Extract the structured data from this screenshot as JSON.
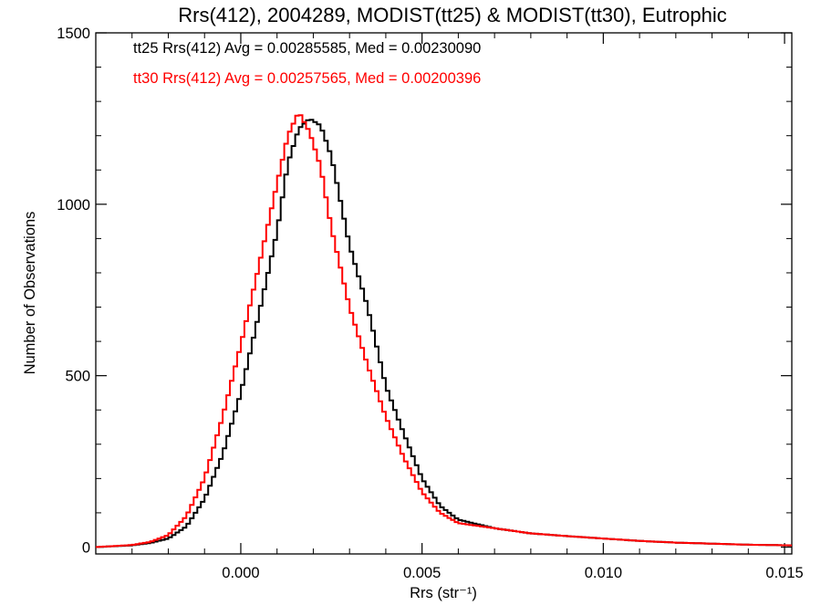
{
  "chart_data": {
    "type": "line",
    "title": "Rrs(412), 2004289, MODIST(tt25) & MODIST(tt30), Eutrophic",
    "xlabel": "Rrs (str⁻¹)",
    "ylabel": "Number of Observations",
    "xlim": [
      -0.004,
      0.0152
    ],
    "ylim": [
      -20,
      1500
    ],
    "xticks": [
      0.0,
      0.005,
      0.01,
      0.015
    ],
    "xtick_labels": [
      "0.000",
      "0.005",
      "0.010",
      "0.015"
    ],
    "yticks": [
      0,
      500,
      1000,
      1500
    ],
    "ytick_labels": [
      "0",
      "500",
      "1000",
      "1500"
    ],
    "grid": false,
    "legend_position": "top-left",
    "annotations": [
      {
        "text": "tt25 Rrs(412) Avg = 0.00285585, Med = 0.00230090",
        "color": "#000000"
      },
      {
        "text": "tt30 Rrs(412) Avg = 0.00257565, Med = 0.00200396",
        "color": "#ff0000"
      }
    ],
    "series": [
      {
        "color": "#000000",
        "x": [
          -0.004,
          -0.003,
          -0.0025,
          -0.002,
          -0.0015,
          -0.001,
          -0.0005,
          0.0,
          0.0005,
          0.001,
          0.0013,
          0.0016,
          0.0019,
          0.0022,
          0.0025,
          0.003,
          0.0035,
          0.004,
          0.0045,
          0.005,
          0.0055,
          0.006,
          0.007,
          0.008,
          0.009,
          0.01,
          0.011,
          0.012,
          0.013,
          0.014,
          0.0152
        ],
        "values": [
          0,
          5,
          12,
          25,
          60,
          140,
          270,
          450,
          680,
          920,
          1120,
          1220,
          1250,
          1230,
          1140,
          880,
          700,
          470,
          330,
          200,
          120,
          80,
          55,
          40,
          32,
          25,
          18,
          13,
          10,
          7,
          5
        ]
      },
      {
        "color": "#ff0000",
        "x": [
          -0.004,
          -0.003,
          -0.0025,
          -0.002,
          -0.0015,
          -0.001,
          -0.0005,
          0.0,
          0.0005,
          0.001,
          0.0013,
          0.0016,
          0.0019,
          0.0022,
          0.0025,
          0.003,
          0.0035,
          0.004,
          0.0045,
          0.005,
          0.0055,
          0.006,
          0.007,
          0.008,
          0.009,
          0.01,
          0.011,
          0.012,
          0.013,
          0.014,
          0.0152
        ],
        "values": [
          0,
          6,
          15,
          35,
          90,
          200,
          380,
          590,
          820,
          1060,
          1200,
          1270,
          1210,
          1110,
          930,
          700,
          530,
          380,
          260,
          160,
          100,
          70,
          55,
          40,
          32,
          25,
          18,
          13,
          10,
          7,
          5
        ]
      }
    ]
  }
}
